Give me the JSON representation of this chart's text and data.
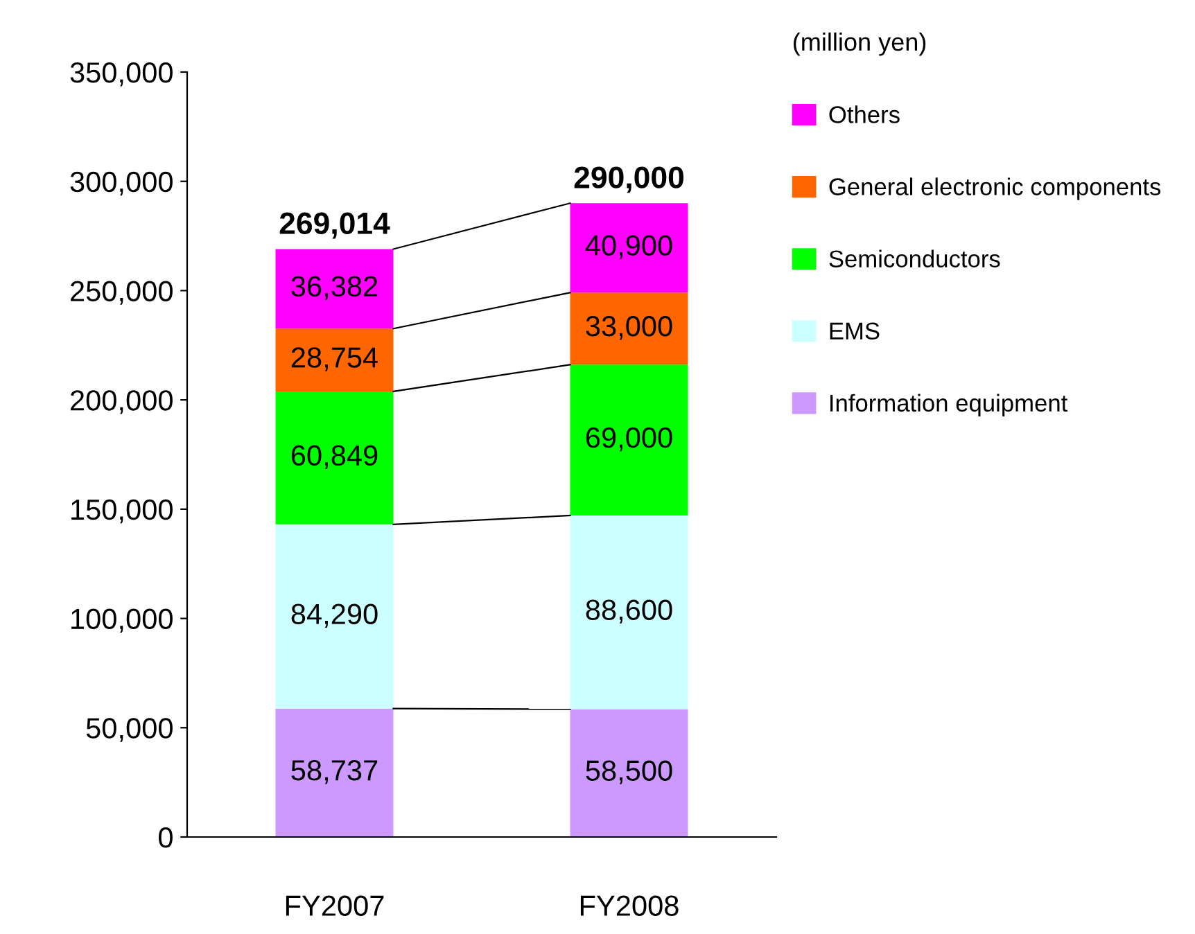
{
  "chart_data": {
    "type": "bar",
    "stacked": true,
    "categories": [
      "FY2007",
      "FY2008"
    ],
    "series": [
      {
        "name": "Information equipment",
        "color": "#cc99ff",
        "values": [
          58737,
          58500
        ],
        "value_labels": [
          "58,737",
          "58,500"
        ]
      },
      {
        "name": "EMS",
        "color": "#ccffff",
        "values": [
          84290,
          88600
        ],
        "value_labels": [
          "84,290",
          "88,600"
        ]
      },
      {
        "name": "Semiconductors",
        "color": "#00ff00",
        "values": [
          60849,
          69000
        ],
        "value_labels": [
          "60,849",
          "69,000"
        ]
      },
      {
        "name": "General electronic components",
        "color": "#ff6600",
        "values": [
          28754,
          33000
        ],
        "value_labels": [
          "28,754",
          "33,000"
        ]
      },
      {
        "name": "Others",
        "color": "#ff00ff",
        "values": [
          36382,
          40900
        ],
        "value_labels": [
          "36,382",
          "40,900"
        ]
      }
    ],
    "totals": [
      "269,014",
      "290,000"
    ],
    "legend_title": "(million yen)",
    "legend": "right",
    "grid": false,
    "ylim": [
      0,
      350000
    ],
    "yticks": [
      0,
      {
        "value": 50000,
        "label": "50,000"
      },
      {
        "value": 100000,
        "label": "100,000"
      },
      {
        "value": 150000,
        "label": "150,000"
      },
      {
        "value": 200000,
        "label": "200,000"
      },
      {
        "value": 250000,
        "label": "250,000"
      },
      {
        "value": 300000,
        "label": "300,000"
      },
      {
        "value": 350000,
        "label": "350,000"
      }
    ]
  }
}
